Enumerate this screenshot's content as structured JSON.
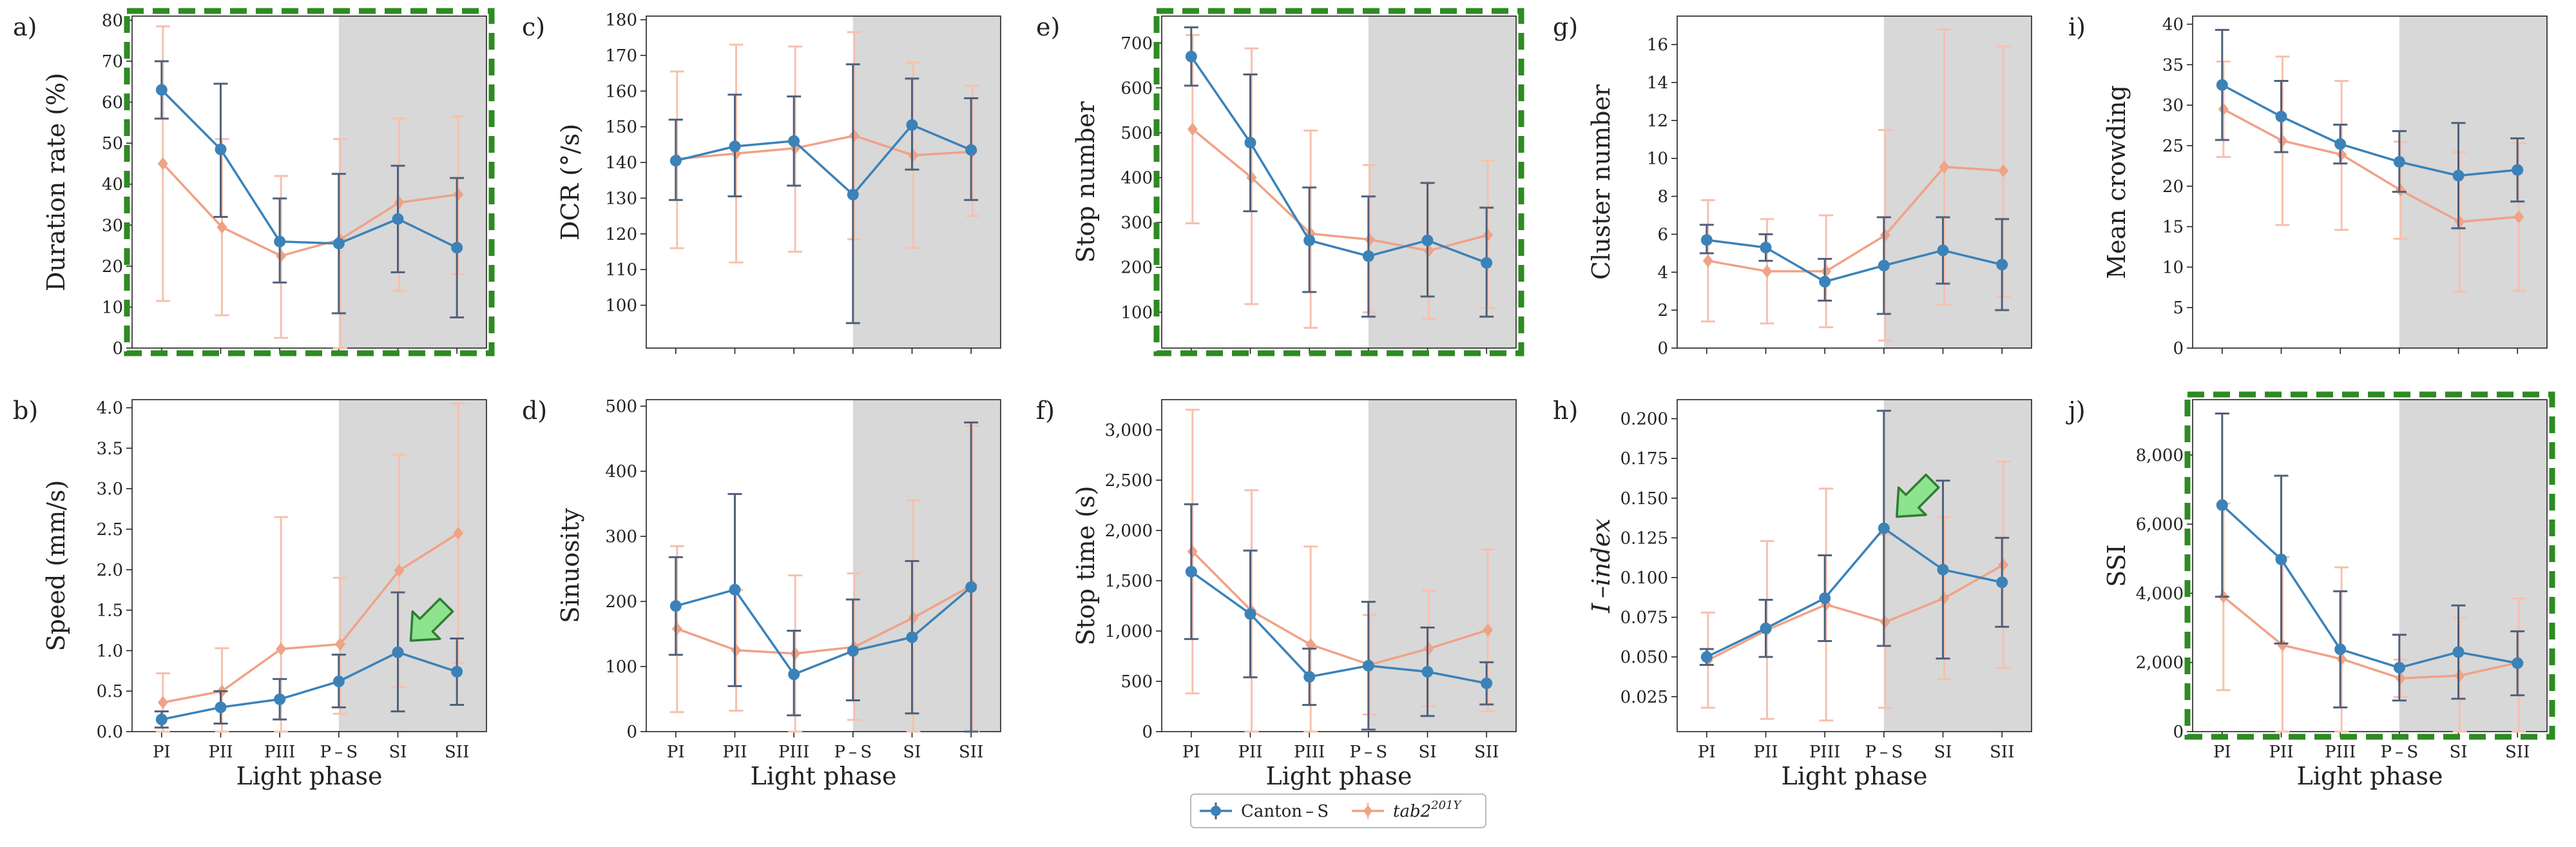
{
  "figure": {
    "categories": [
      "PI",
      "PII",
      "PIII",
      "P – S",
      "SI",
      "SII"
    ],
    "xlabel": "Light phase",
    "dark_phase_start_category": 3,
    "colors": {
      "canton": "#3b82b9",
      "tab": "#f0a286",
      "canton_error": "#50607a",
      "tab_error": "#f6c1ad",
      "dark_shade": "#d8d8d8",
      "highlight_border": "#2e8b22",
      "arrow_fill": "#8ee38e",
      "arrow_stroke": "#2e7d32"
    },
    "legend": {
      "canton_label": "Canton – S",
      "tab_label": "tab2",
      "tab_superscript": "201Y"
    }
  },
  "chart_data": [
    {
      "id": "a",
      "letter": "a)",
      "type": "line",
      "ylabel": "Duration rate (%)",
      "ylim": [
        0,
        81
      ],
      "yticks": [
        0,
        10,
        20,
        30,
        40,
        50,
        60,
        70,
        80
      ],
      "ytick_labels": [
        "0",
        "10",
        "20",
        "30",
        "40",
        "50",
        "60",
        "70",
        "80"
      ],
      "highlight": true,
      "arrow_category": null,
      "show_xticks": false,
      "series": [
        {
          "name": "Canton–S",
          "values": [
            63,
            48.5,
            26,
            25.5,
            31.5,
            24.5
          ],
          "err_low": [
            56,
            32,
            16,
            8.5,
            18.5,
            7.5
          ],
          "err_high": [
            70,
            64.5,
            36.5,
            42.5,
            44.5,
            41.5
          ]
        },
        {
          "name": "tab2^201Y",
          "values": [
            45,
            29.5,
            22.5,
            26.5,
            35.5,
            37.5
          ],
          "err_low": [
            11.5,
            8,
            2.5,
            0,
            14,
            18
          ],
          "err_high": [
            78.5,
            51,
            42,
            51,
            56,
            56.5
          ]
        }
      ]
    },
    {
      "id": "b",
      "letter": "b)",
      "type": "line",
      "ylabel": "Speed (mm/s)",
      "ylim": [
        0,
        4.1
      ],
      "yticks": [
        0,
        0.5,
        1,
        1.5,
        2,
        2.5,
        3,
        3.5,
        4
      ],
      "ytick_labels": [
        "0.0",
        "0.5",
        "1.0",
        "1.5",
        "2.0",
        "2.5",
        "3.0",
        "3.5",
        "4.0"
      ],
      "highlight": false,
      "arrow_category": 4,
      "show_xticks": true,
      "series": [
        {
          "name": "Canton–S",
          "values": [
            0.15,
            0.3,
            0.4,
            0.62,
            0.98,
            0.74
          ],
          "err_low": [
            0.05,
            0.1,
            0.15,
            0.3,
            0.25,
            0.33
          ],
          "err_high": [
            0.25,
            0.5,
            0.65,
            0.95,
            1.72,
            1.15
          ]
        },
        {
          "name": "tab2^201Y",
          "values": [
            0.36,
            0.5,
            1.02,
            1.08,
            1.99,
            2.45
          ],
          "err_low": [
            0.0,
            0.0,
            0.0,
            0.22,
            0.55,
            0.85
          ],
          "err_high": [
            0.72,
            1.03,
            2.65,
            1.9,
            3.42,
            4.05
          ]
        }
      ]
    },
    {
      "id": "c",
      "letter": "c)",
      "type": "line",
      "ylabel": "DCR (°/s)",
      "ylim": [
        88,
        181
      ],
      "yticks": [
        100,
        110,
        120,
        130,
        140,
        150,
        160,
        170,
        180
      ],
      "ytick_labels": [
        "100",
        "110",
        "120",
        "130",
        "140",
        "150",
        "160",
        "170",
        "180"
      ],
      "highlight": false,
      "arrow_category": null,
      "show_xticks": false,
      "series": [
        {
          "name": "Canton–S",
          "values": [
            140.5,
            144.5,
            146,
            131,
            150.5,
            143.5
          ],
          "err_low": [
            129.5,
            130.5,
            133.5,
            95,
            138,
            129.5
          ],
          "err_high": [
            152,
            159,
            158.5,
            167.5,
            163.5,
            158
          ]
        },
        {
          "name": "tab2^201Y",
          "values": [
            141,
            142.5,
            144,
            147.5,
            142,
            143
          ],
          "err_low": [
            116,
            112,
            115,
            118.5,
            116,
            125
          ],
          "err_high": [
            165.5,
            173,
            172.5,
            176.5,
            168,
            161.5
          ]
        }
      ]
    },
    {
      "id": "d",
      "letter": "d)",
      "type": "line",
      "ylabel": "Sinuosity",
      "ylim": [
        0,
        510
      ],
      "yticks": [
        0,
        100,
        200,
        300,
        400,
        500
      ],
      "ytick_labels": [
        "0",
        "100",
        "200",
        "300",
        "400",
        "500"
      ],
      "highlight": false,
      "arrow_category": null,
      "show_xticks": true,
      "series": [
        {
          "name": "Canton–S",
          "values": [
            193,
            218,
            88,
            124,
            145,
            222
          ],
          "err_low": [
            118,
            70,
            25,
            48,
            28,
            0
          ],
          "err_high": [
            268,
            365,
            155,
            203,
            262,
            475
          ]
        },
        {
          "name": "tab2^201Y",
          "values": [
            158,
            125,
            120,
            130,
            175,
            225
          ],
          "err_low": [
            30,
            32,
            0,
            18,
            0,
            0
          ],
          "err_high": [
            285,
            218,
            240,
            243,
            355,
            470
          ]
        }
      ]
    },
    {
      "id": "e",
      "letter": "e)",
      "type": "line",
      "ylabel": "Stop number",
      "ylim": [
        20,
        760
      ],
      "yticks": [
        100,
        200,
        300,
        400,
        500,
        600,
        700
      ],
      "ytick_labels": [
        "100",
        "200",
        "300",
        "400",
        "500",
        "600",
        "700"
      ],
      "highlight": true,
      "arrow_category": null,
      "show_xticks": false,
      "series": [
        {
          "name": "Canton–S",
          "values": [
            670,
            478,
            260,
            225,
            260,
            210
          ],
          "err_low": [
            605,
            325,
            145,
            90,
            135,
            90
          ],
          "err_high": [
            735,
            630,
            378,
            358,
            388,
            333
          ]
        },
        {
          "name": "tab2^201Y",
          "values": [
            508,
            400,
            275,
            262,
            237,
            272
          ],
          "err_low": [
            298,
            118,
            65,
            100,
            85,
            110
          ],
          "err_high": [
            718,
            688,
            505,
            428,
            390,
            438
          ]
        }
      ]
    },
    {
      "id": "f",
      "letter": "f)",
      "type": "line",
      "ylabel": "Stop time (s)",
      "ylim": [
        0,
        3300
      ],
      "yticks": [
        0,
        500,
        1000,
        1500,
        2000,
        2500,
        3000
      ],
      "ytick_labels": [
        "0",
        "500",
        "1,000",
        "1,500",
        "2,000",
        "2,500",
        "3,000"
      ],
      "highlight": false,
      "arrow_category": null,
      "show_xticks": true,
      "series": [
        {
          "name": "Canton–S",
          "values": [
            1590,
            1170,
            545,
            655,
            595,
            480
          ],
          "err_low": [
            920,
            540,
            265,
            20,
            155,
            270
          ],
          "err_high": [
            2260,
            1800,
            825,
            1290,
            1035,
            690
          ]
        },
        {
          "name": "tab2^201Y",
          "values": [
            1790,
            1200,
            865,
            665,
            825,
            1010
          ],
          "err_low": [
            380,
            0,
            0,
            170,
            250,
            200
          ],
          "err_high": [
            3200,
            2400,
            1840,
            1160,
            1400,
            1810
          ]
        }
      ]
    },
    {
      "id": "g",
      "letter": "g)",
      "type": "line",
      "ylabel": "Cluster number",
      "ylim": [
        0,
        17.5
      ],
      "yticks": [
        0,
        2,
        4,
        6,
        8,
        10,
        12,
        14,
        16
      ],
      "ytick_labels": [
        "0",
        "2",
        "4",
        "6",
        "8",
        "10",
        "12",
        "14",
        "16"
      ],
      "highlight": false,
      "arrow_category": null,
      "show_xticks": false,
      "series": [
        {
          "name": "Canton–S",
          "values": [
            5.7,
            5.3,
            3.5,
            4.35,
            5.15,
            4.4
          ],
          "err_low": [
            5.0,
            4.6,
            2.5,
            1.8,
            3.4,
            2.0
          ],
          "err_high": [
            6.5,
            6.0,
            4.7,
            6.9,
            6.9,
            6.8
          ]
        },
        {
          "name": "tab2^201Y",
          "values": [
            4.6,
            4.05,
            4.05,
            5.95,
            9.55,
            9.35
          ],
          "err_low": [
            1.4,
            1.3,
            1.1,
            0.4,
            2.3,
            2.7
          ],
          "err_high": [
            7.8,
            6.8,
            7.0,
            11.5,
            16.8,
            15.9
          ]
        }
      ]
    },
    {
      "id": "h",
      "letter": "h)",
      "type": "line",
      "ylabel": "I –index",
      "ylim": [
        0.003,
        0.212
      ],
      "yticks": [
        0.025,
        0.05,
        0.075,
        0.1,
        0.125,
        0.15,
        0.175,
        0.2
      ],
      "ytick_labels": [
        "0.025",
        "0.050",
        "0.075",
        "0.100",
        "0.125",
        "0.150",
        "0.175",
        "0.200"
      ],
      "highlight": false,
      "arrow_category": 3,
      "show_xticks": true,
      "series": [
        {
          "name": "Canton–S",
          "values": [
            0.05,
            0.068,
            0.087,
            0.131,
            0.105,
            0.097
          ],
          "err_low": [
            0.045,
            0.05,
            0.06,
            0.057,
            0.049,
            0.069
          ],
          "err_high": [
            0.055,
            0.086,
            0.114,
            0.205,
            0.161,
            0.125
          ]
        },
        {
          "name": "tab2^201Y",
          "values": [
            0.048,
            0.067,
            0.083,
            0.072,
            0.087,
            0.108
          ],
          "err_low": [
            0.018,
            0.011,
            0.01,
            0.018,
            0.036,
            0.043
          ],
          "err_high": [
            0.078,
            0.123,
            0.156,
            0.127,
            0.138,
            0.173
          ]
        }
      ]
    },
    {
      "id": "i",
      "letter": "i)",
      "type": "line",
      "ylabel": "Mean crowding",
      "ylim": [
        0,
        41
      ],
      "yticks": [
        0,
        5,
        10,
        15,
        20,
        25,
        30,
        35,
        40
      ],
      "ytick_labels": [
        "0",
        "5",
        "10",
        "15",
        "20",
        "25",
        "30",
        "35",
        "40"
      ],
      "highlight": false,
      "arrow_category": null,
      "show_xticks": false,
      "series": [
        {
          "name": "Canton–S",
          "values": [
            32.5,
            28.6,
            25.2,
            23.0,
            21.3,
            22.0
          ],
          "err_low": [
            25.7,
            24.2,
            22.8,
            19.3,
            14.8,
            18.1
          ],
          "err_high": [
            39.3,
            33.0,
            27.6,
            26.8,
            27.8,
            25.9
          ]
        },
        {
          "name": "tab2^201Y",
          "values": [
            29.5,
            25.6,
            23.9,
            19.5,
            15.6,
            16.2
          ],
          "err_low": [
            23.6,
            15.2,
            14.6,
            13.5,
            7.0,
            7.1
          ],
          "err_high": [
            35.4,
            36.0,
            33.0,
            25.5,
            24.2,
            25.3
          ]
        }
      ]
    },
    {
      "id": "j",
      "letter": "j)",
      "type": "line",
      "ylabel": "SSI",
      "ylim": [
        0,
        9600
      ],
      "yticks": [
        0,
        2000,
        4000,
        6000,
        8000
      ],
      "ytick_labels": [
        "0",
        "2,000",
        "4,000",
        "6,000",
        "8,000"
      ],
      "highlight": true,
      "arrow_category": null,
      "show_xticks": true,
      "series": [
        {
          "name": "Canton–S",
          "values": [
            6550,
            4980,
            2380,
            1850,
            2300,
            1980
          ],
          "err_low": [
            3900,
            2550,
            700,
            900,
            950,
            1050
          ],
          "err_high": [
            9200,
            7400,
            4060,
            2800,
            3650,
            2900
          ]
        },
        {
          "name": "tab2^201Y",
          "values": [
            3900,
            2500,
            2100,
            1540,
            1620,
            2000
          ],
          "err_low": [
            1200,
            0,
            0,
            1000,
            0,
            0
          ],
          "err_high": [
            6600,
            5050,
            4750,
            2080,
            3300,
            3850
          ]
        }
      ]
    }
  ]
}
